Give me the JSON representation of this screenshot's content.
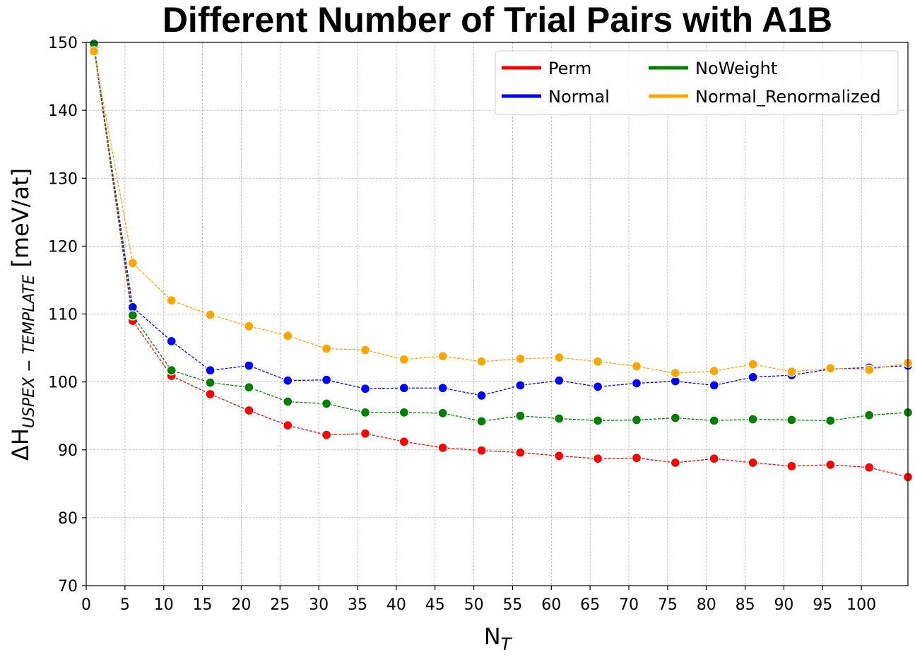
{
  "chart_data": {
    "type": "line",
    "title": "Different Number of Trial Pairs with A1B",
    "xlabel": "N",
    "xlabel_sub": "T",
    "ylabel_prefix": "ΔH",
    "ylabel_sub": "USPEX − TEMPLATE",
    "ylabel_unit": " [meV/at]",
    "xlim": [
      0,
      106
    ],
    "ylim": [
      70,
      150
    ],
    "xticks": [
      0,
      5,
      10,
      15,
      20,
      25,
      30,
      35,
      40,
      45,
      50,
      55,
      60,
      65,
      70,
      75,
      80,
      85,
      90,
      95,
      100
    ],
    "yticks": [
      70,
      80,
      90,
      100,
      110,
      120,
      130,
      140,
      150
    ],
    "grid": true,
    "legend_position": "top-right",
    "x": [
      1,
      6,
      11,
      16,
      21,
      26,
      31,
      36,
      41,
      46,
      51,
      56,
      61,
      66,
      71,
      76,
      81,
      86,
      91,
      96,
      101,
      106
    ],
    "series": [
      {
        "name": "Perm",
        "color": "#ff0000",
        "values": [
          149.2,
          109.0,
          100.9,
          98.2,
          95.8,
          93.6,
          92.2,
          92.4,
          91.2,
          90.3,
          89.9,
          89.6,
          89.1,
          88.7,
          88.8,
          88.1,
          88.7,
          88.1,
          87.6,
          87.8,
          87.4,
          86.0
        ]
      },
      {
        "name": "Normal",
        "color": "#0000ff",
        "values": [
          149.2,
          111.0,
          106.0,
          101.7,
          102.4,
          100.2,
          100.3,
          99.0,
          99.1,
          99.1,
          98.0,
          99.5,
          100.2,
          99.3,
          99.8,
          100.1,
          99.5,
          100.7,
          101.0,
          101.9,
          102.1,
          102.4
        ]
      },
      {
        "name": "NoWeight",
        "color": "#008000",
        "values": [
          149.8,
          109.8,
          101.7,
          99.9,
          99.2,
          97.1,
          96.8,
          95.5,
          95.5,
          95.4,
          94.2,
          95.0,
          94.6,
          94.3,
          94.4,
          94.7,
          94.3,
          94.5,
          94.4,
          94.3,
          95.1,
          95.5
        ]
      },
      {
        "name": "Normal_Renormalized",
        "color": "#ffa500",
        "values": [
          148.7,
          117.5,
          112.0,
          109.9,
          108.2,
          106.8,
          104.9,
          104.7,
          103.3,
          103.8,
          103.0,
          103.4,
          103.6,
          103.0,
          102.3,
          101.3,
          101.6,
          102.6,
          101.5,
          102.0,
          101.8,
          102.8
        ]
      }
    ]
  }
}
